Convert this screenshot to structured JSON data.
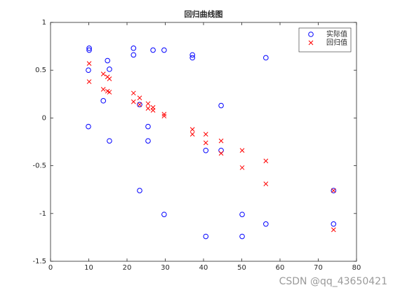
{
  "chart_data": {
    "type": "scatter",
    "title": "回归曲线图",
    "xlim": [
      0,
      80
    ],
    "xticks": [
      0,
      10,
      20,
      30,
      40,
      50,
      60,
      70,
      80
    ],
    "ylim": [
      -1.5,
      1
    ],
    "yticks": [
      -1.5,
      -1,
      -0.5,
      0,
      0.5,
      1
    ],
    "legend": "upper-right",
    "series": [
      {
        "name": "实际值",
        "color": "#0000ff",
        "marker": "circle",
        "x": [
          10.1,
          10.1,
          9.9,
          9.9,
          14.9,
          15.4,
          13.8,
          15.4,
          21.7,
          21.7,
          23.3,
          23.3,
          25.5,
          25.5,
          26.8,
          29.7,
          29.7,
          37.1,
          37.1,
          44.6,
          40.6,
          40.6,
          44.6,
          50.1,
          50.1,
          56.3,
          56.3,
          74,
          74
        ],
        "values": [
          0.73,
          0.71,
          0.5,
          -0.09,
          0.6,
          0.51,
          0.18,
          -0.24,
          0.73,
          0.66,
          0.14,
          -0.76,
          -0.09,
          -0.24,
          0.71,
          0.71,
          -1.01,
          0.66,
          0.63,
          0.13,
          -0.34,
          -1.24,
          -0.34,
          -1.01,
          -1.24,
          0.63,
          -1.11,
          -0.76,
          -1.11
        ]
      },
      {
        "name": "回归值",
        "color": "#ff0000",
        "marker": "cross",
        "x": [
          10.1,
          10.1,
          13.8,
          13.8,
          14.9,
          15.4,
          14.9,
          15.4,
          21.7,
          21.7,
          23.3,
          23.3,
          25.5,
          25.5,
          26.8,
          26.8,
          29.7,
          29.7,
          37.1,
          37.1,
          40.6,
          40.6,
          44.6,
          44.6,
          50.1,
          50.1,
          56.3,
          56.3,
          74,
          74
        ],
        "values": [
          0.57,
          0.38,
          0.46,
          0.3,
          0.43,
          0.41,
          0.28,
          0.27,
          0.26,
          0.17,
          0.21,
          0.14,
          0.15,
          0.1,
          0.11,
          0.08,
          0.04,
          0.02,
          -0.12,
          -0.17,
          -0.17,
          -0.26,
          -0.24,
          -0.37,
          -0.34,
          -0.52,
          -0.45,
          -0.69,
          -0.76,
          -1.17
        ]
      }
    ]
  },
  "watermark": "CSDN @qq_43650421"
}
